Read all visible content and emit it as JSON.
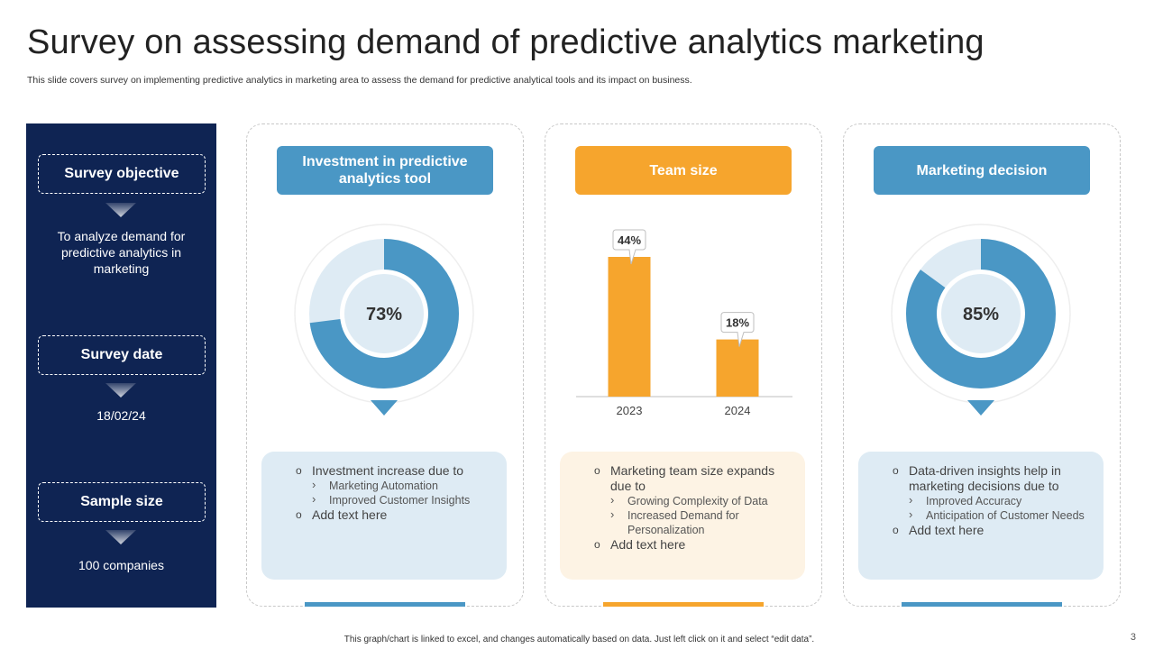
{
  "title": "Survey on assessing demand of predictive analytics marketing",
  "subtitle": "This slide covers survey on implementing predictive analytics in marketing area to assess the demand for predictive analytical tools and its impact on business.",
  "sidebar": {
    "objective_label": "Survey objective",
    "objective_text": "To analyze demand for predictive analytics in marketing",
    "date_label": "Survey date",
    "date_value": "18/02/24",
    "sample_label": "Sample size",
    "sample_value": "100 companies"
  },
  "colors": {
    "navy": "#0f2453",
    "blue": "#4a97c5",
    "orange": "#f6a52d",
    "light_blue": "#deebf4",
    "light_orange": "#fdf3e4"
  },
  "cards": [
    {
      "header": "Investment in predictive analytics tool",
      "bullet_main": "Investment increase due to",
      "sub_bullets": [
        "Marketing Automation",
        "Improved Customer Insights"
      ],
      "bullet_extra": "Add text here"
    },
    {
      "header": "Team size",
      "bullet_main": "Marketing team size expands due to",
      "sub_bullets": [
        "Growing Complexity of Data",
        "Increased Demand for Personalization"
      ],
      "bullet_extra": "Add text here"
    },
    {
      "header": "Marketing decision",
      "bullet_main": "Data-driven insights help in marketing decisions due to",
      "sub_bullets": [
        "Improved  Accuracy",
        "Anticipation of Customer Needs"
      ],
      "bullet_extra": "Add text here"
    }
  ],
  "chart_data": [
    {
      "type": "pie",
      "variant": "donut",
      "categories": [
        ""
      ],
      "values": [
        73
      ],
      "label": "73%",
      "color": "#4a97c5"
    },
    {
      "type": "bar",
      "categories": [
        "2023",
        "2024"
      ],
      "values": [
        44,
        18
      ],
      "data_labels": [
        "44%",
        "18%"
      ],
      "ylim": [
        0,
        50
      ],
      "color": "#f6a52d"
    },
    {
      "type": "pie",
      "variant": "donut",
      "categories": [
        ""
      ],
      "values": [
        85
      ],
      "label": "85%",
      "color": "#4a97c5"
    }
  ],
  "footer": "This graph/chart is linked to excel, and changes automatically based on data. Just left click on it and select “edit data”.",
  "page_number": "3"
}
